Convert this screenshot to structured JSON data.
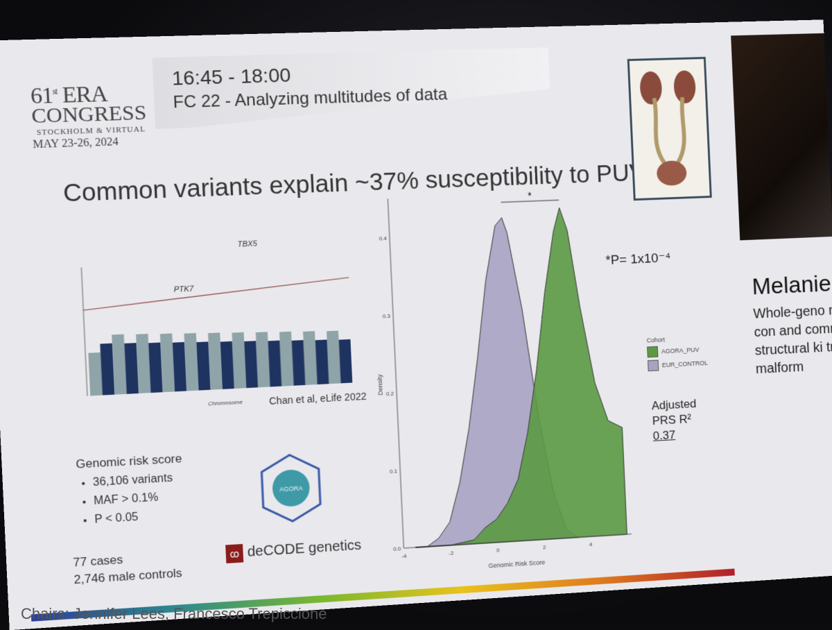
{
  "session": {
    "time": "16:45 - 18:00",
    "title": "FC 22 - Analyzing multitudes of data"
  },
  "congress": {
    "edition": "61",
    "edition_suffix": "st",
    "name_line1": "ERA",
    "name_line2": "CONGRESS",
    "location": "STOCKHOLM & VIRTUAL",
    "dates": "MAY 23-26, 2024"
  },
  "headline": "Common variants explain ~37% susceptibility to PUV",
  "manhattan": {
    "gene_peak_1": "PTK7",
    "gene_peak_2": "TBX5",
    "xlabel": "Chromosome",
    "citation": "Chan et al, eLife 2022",
    "colors": [
      "#8fa4a8",
      "#1f3360"
    ]
  },
  "risk": {
    "title": "Genomic risk score",
    "items": [
      "36,106 variants",
      "MAF > 0.1%",
      "P < 0.05"
    ]
  },
  "cases": {
    "line1": "77 cases",
    "line2": "2,746 male controls"
  },
  "logos": {
    "agora": "AGORA",
    "decode": "deCODE genetics"
  },
  "chart_data": {
    "type": "area",
    "xlabel": "Genomic Risk Score",
    "ylabel": "Density",
    "xlim": [
      -4,
      5.8
    ],
    "ylim": [
      0,
      0.45
    ],
    "x_ticks": [
      -4,
      -2,
      0,
      2,
      4
    ],
    "y_ticks": [
      0.0,
      0.1,
      0.2,
      0.3,
      0.4
    ],
    "significance_marker": "*",
    "legend_title": "Cohort",
    "legend_position": "right",
    "series": [
      {
        "name": "EUR_CONTROL",
        "color": "#a9a3c2",
        "x": [
          -3.5,
          -3.0,
          -2.5,
          -2.0,
          -1.5,
          -1.0,
          -0.5,
          0.0,
          0.5,
          0.8,
          1.0,
          1.5,
          2.0,
          2.5,
          3.0,
          3.5
        ],
        "y": [
          0.0,
          0.0,
          0.01,
          0.03,
          0.08,
          0.15,
          0.24,
          0.34,
          0.41,
          0.42,
          0.4,
          0.3,
          0.16,
          0.06,
          0.01,
          0.0
        ]
      },
      {
        "name": "AGORA_PUV",
        "color": "#5b9a43",
        "x": [
          -3.5,
          -2.0,
          -1.0,
          -0.5,
          0.0,
          0.5,
          1.0,
          1.5,
          2.0,
          2.5,
          3.0,
          3.3,
          3.6,
          4.0,
          4.5,
          5.0,
          5.6
        ],
        "y": [
          0.0,
          0.0,
          0.005,
          0.02,
          0.03,
          0.05,
          0.08,
          0.14,
          0.22,
          0.32,
          0.4,
          0.43,
          0.4,
          0.3,
          0.2,
          0.15,
          0.14
        ]
      }
    ]
  },
  "stats": {
    "pval": "*P= 1x10⁻⁴",
    "adjusted_label": "Adjusted",
    "prs_label": "PRS R²",
    "prs_value": "0.37"
  },
  "speaker": {
    "name": "Melanie",
    "talk": "Whole-geno reveals con and commo structural ki tract malform"
  },
  "chairs": "Chairs: Jennifer Lees, Francesco Trepiccione"
}
